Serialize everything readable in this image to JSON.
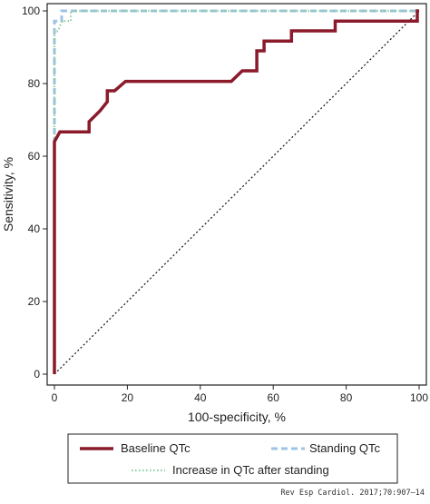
{
  "chart_data": {
    "type": "line",
    "xlabel": "100-specificity, %",
    "ylabel": "Sensitivity, %",
    "xlim": [
      0,
      100
    ],
    "ylim": [
      0,
      100
    ],
    "x_ticks": [
      0,
      20,
      40,
      60,
      80,
      100
    ],
    "y_ticks": [
      0,
      20,
      40,
      60,
      80,
      100
    ],
    "grid": false,
    "legend_position": "bottom",
    "reference_line": {
      "style": "dotted",
      "color": "#111111",
      "from": [
        0,
        0
      ],
      "to": [
        100,
        100
      ]
    },
    "series": [
      {
        "name": "Baseline QTc",
        "style": "solid",
        "color": "#8b1a2b",
        "points": [
          [
            0,
            0
          ],
          [
            0,
            64
          ],
          [
            1.5,
            66.7
          ],
          [
            9.5,
            66.7
          ],
          [
            9.5,
            69.5
          ],
          [
            12.5,
            72.5
          ],
          [
            14.5,
            75
          ],
          [
            14.5,
            78
          ],
          [
            16.5,
            78
          ],
          [
            19.5,
            80.6
          ],
          [
            48.5,
            80.6
          ],
          [
            51.5,
            83.5
          ],
          [
            55.5,
            83.5
          ],
          [
            55.5,
            89
          ],
          [
            57.5,
            89
          ],
          [
            57.5,
            91.7
          ],
          [
            65,
            91.7
          ],
          [
            65,
            94.5
          ],
          [
            77,
            94.5
          ],
          [
            77,
            97.2
          ],
          [
            99.5,
            97.2
          ],
          [
            99.5,
            100
          ],
          [
            100,
            100
          ]
        ]
      },
      {
        "name": "Standing QTc",
        "style": "dashed",
        "color": "#9ec3e6",
        "points": [
          [
            0,
            0
          ],
          [
            0,
            97.2
          ],
          [
            2,
            97.2
          ],
          [
            2,
            100
          ],
          [
            100,
            100
          ]
        ]
      },
      {
        "name": "Increase in QTc after standing",
        "style": "dotted",
        "color": "#8fcf9f",
        "points": [
          [
            0,
            0
          ],
          [
            0,
            94.4
          ],
          [
            1,
            94.4
          ],
          [
            2,
            97.2
          ],
          [
            4.5,
            97.2
          ],
          [
            4.5,
            100
          ],
          [
            100,
            100
          ]
        ]
      }
    ]
  },
  "legend": {
    "items": [
      "Baseline QTc",
      "Standing QTc",
      "Increase in QTc after standing"
    ]
  },
  "citation": "Rev Esp Cardiol. 2017;70:907–14"
}
